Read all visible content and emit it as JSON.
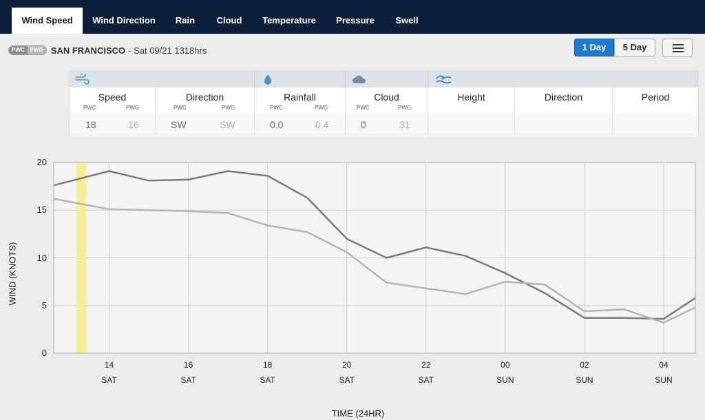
{
  "tabs": [
    {
      "label": "Wind Speed",
      "active": true
    },
    {
      "label": "Wind Direction",
      "active": false
    },
    {
      "label": "Rain",
      "active": false
    },
    {
      "label": "Cloud",
      "active": false
    },
    {
      "label": "Temperature",
      "active": false
    },
    {
      "label": "Pressure",
      "active": false
    },
    {
      "label": "Swell",
      "active": false
    }
  ],
  "location": {
    "badge_left": "PWC",
    "badge_right": "PWG",
    "name": "SAN FRANCISCO",
    "date": "- Sat 09/21 1318hrs"
  },
  "range_toggle": {
    "one_day": "1 Day",
    "five_day": "5 Day",
    "selected": "1 Day"
  },
  "menu": {
    "icon": "hamburger-menu-icon"
  },
  "summary": {
    "sections": [
      {
        "icon": "wind-icon"
      },
      {
        "icon": "raindrop-icon"
      },
      {
        "icon": "cloud-icon"
      },
      {
        "icon": "swell-icon"
      }
    ],
    "columns": [
      {
        "name": "Speed",
        "pwc_label": "PWC",
        "pwg_label": "PWG",
        "pwc": "18",
        "pwg": "16"
      },
      {
        "name": "Direction",
        "pwc_label": "PWC",
        "pwg_label": "PWG",
        "pwc": "SW",
        "pwg": "SW"
      },
      {
        "name": "Rainfall",
        "pwc_label": "PWC",
        "pwg_label": "PWG",
        "pwc": "0.0",
        "pwg": "0.4"
      },
      {
        "name": "Cloud",
        "pwc_label": "PWC",
        "pwg_label": "PWG",
        "pwc": "0",
        "pwg": "31"
      },
      {
        "name": "Height"
      },
      {
        "name": "Direction"
      },
      {
        "name": "Period"
      }
    ]
  },
  "chart_data": {
    "type": "line",
    "ylabel": "WIND (KNOTS)",
    "xlabel": "TIME (24HR)",
    "ylim": [
      0,
      20
    ],
    "yticks": [
      "20",
      "15",
      "10",
      "5",
      "0"
    ],
    "xlim": [
      12.6,
      28.8
    ],
    "xticks": [
      {
        "hour": "14",
        "day": "SAT"
      },
      {
        "hour": "16",
        "day": "SAT"
      },
      {
        "hour": "18",
        "day": "SAT"
      },
      {
        "hour": "20",
        "day": "SAT"
      },
      {
        "hour": "22",
        "day": "SAT"
      },
      {
        "hour": "00",
        "day": "SUN"
      },
      {
        "hour": "02",
        "day": "SUN"
      },
      {
        "hour": "04",
        "day": "SUN"
      }
    ],
    "grid": true,
    "current_time_hour": 13.3,
    "series": [
      {
        "color": "#7a7a7a",
        "x": [
          12.6,
          14,
          15,
          16,
          17,
          18,
          19,
          20,
          21,
          22,
          23,
          24,
          25,
          26,
          27,
          28,
          28.8
        ],
        "y": [
          17.6,
          19.1,
          18.1,
          18.2,
          19.1,
          18.6,
          16.3,
          12.0,
          10.0,
          11.1,
          10.2,
          8.4,
          6.3,
          3.7,
          3.7,
          3.6,
          5.8
        ]
      },
      {
        "color": "#b3b3b3",
        "x": [
          12.6,
          14,
          15,
          16,
          17,
          18,
          19,
          20,
          21,
          22,
          23,
          24,
          25,
          26,
          27,
          28,
          28.8
        ],
        "y": [
          16.2,
          15.1,
          15.0,
          14.9,
          14.7,
          13.4,
          12.7,
          10.6,
          7.4,
          6.8,
          6.2,
          7.5,
          7.2,
          4.4,
          4.6,
          3.2,
          4.8
        ]
      }
    ]
  }
}
